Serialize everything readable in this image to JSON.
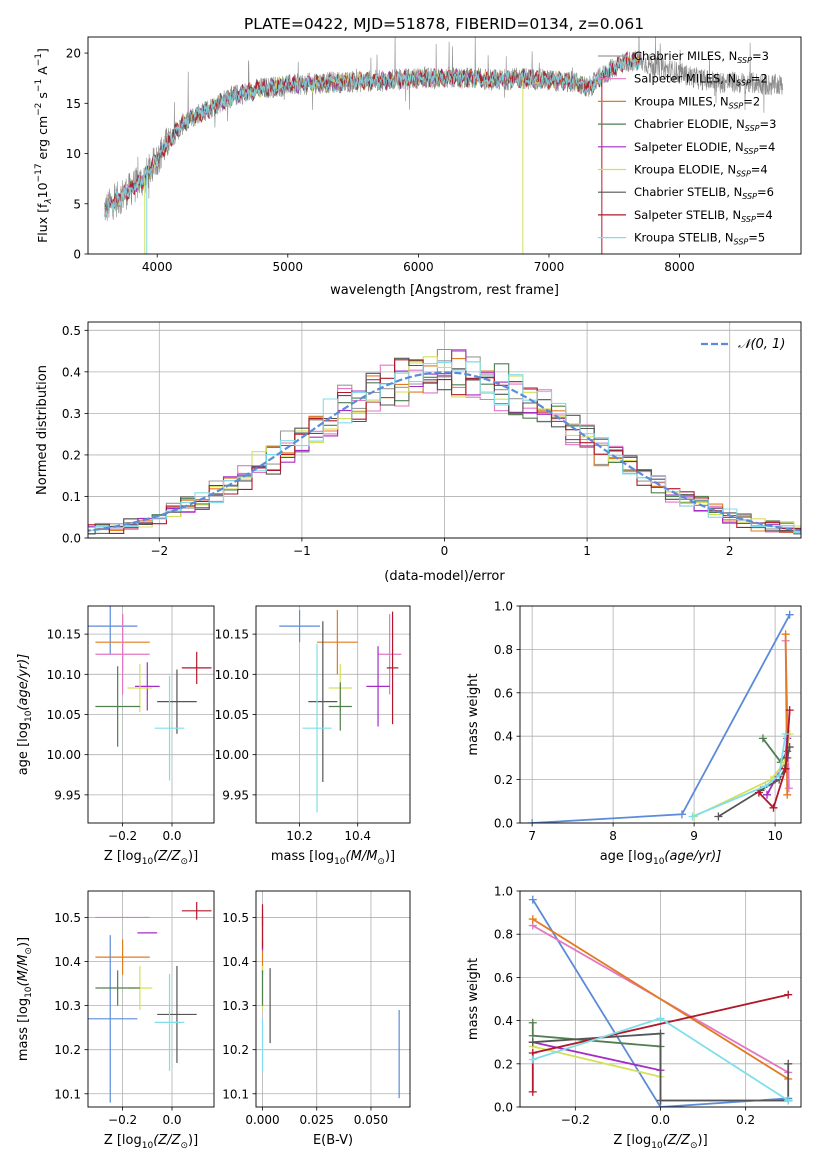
{
  "figure_title": "PLATE=0422, MJD=51878, FIBERID=0134, z=0.061",
  "legend_entries": [
    {
      "label": "Chabrier MILES, N",
      "sub": "SSP",
      "suffix": "=3",
      "color": "#9a9a9a"
    },
    {
      "label": "Salpeter MILES, N",
      "sub": "SSP",
      "suffix": "=2",
      "color": "#e377c2"
    },
    {
      "label": "Kroupa MILES, N",
      "sub": "SSP",
      "suffix": "=2",
      "color": "#e07b20"
    },
    {
      "label": "Chabrier ELODIE, N",
      "sub": "SSP",
      "suffix": "=3",
      "color": "#4f7f4f"
    },
    {
      "label": "Salpeter ELODIE, N",
      "sub": "SSP",
      "suffix": "=4",
      "color": "#a52cc4"
    },
    {
      "label": "Kroupa ELODIE, N",
      "sub": "SSP",
      "suffix": "=4",
      "color": "#d4e157"
    },
    {
      "label": "Chabrier STELIB, N",
      "sub": "SSP",
      "suffix": "=6",
      "color": "#555555"
    },
    {
      "label": "Salpeter STELIB, N",
      "sub": "SSP",
      "suffix": "=4",
      "color": "#b2182b"
    },
    {
      "label": "Kroupa STELIB, N",
      "sub": "SSP",
      "suffix": "=5",
      "color": "#80deea"
    }
  ],
  "chart_data": [
    {
      "id": "spectrum",
      "type": "line",
      "xlabel": "wavelength [Angstrom, rest frame]",
      "ylabel": "Flux [f",
      "ylabel_sub": "λ",
      "ylabel_rest": "10",
      "ylabel_exp": "−17",
      "ylabel_units": " erg cm",
      "ylabel_units_exp": "−2",
      "ylabel_units2": " s",
      "ylabel_units2_exp": "−1",
      "ylabel_units3": " A",
      "ylabel_units3_exp": "−1",
      "ylabel_close": "]",
      "xlim": [
        3470,
        8930
      ],
      "ylim": [
        0,
        21.6
      ],
      "xticks": [
        4000,
        5000,
        6000,
        7000,
        8000
      ],
      "yticks": [
        0,
        5,
        10,
        15,
        20
      ],
      "continuum": {
        "x": [
          3600,
          3700,
          3800,
          3900,
          4000,
          4100,
          4200,
          4300,
          4400,
          4500,
          4600,
          4800,
          5000,
          5200,
          5400,
          5600,
          5800,
          6000,
          6200,
          6400,
          6600,
          6800,
          7000,
          7100,
          7200,
          7300,
          7400,
          7500,
          7600,
          7700,
          7800,
          7900,
          8000,
          8100,
          8200,
          8300,
          8400,
          8500,
          8600,
          8700,
          8780
        ],
        "y": [
          4.5,
          5.5,
          6.5,
          7.5,
          9.5,
          11.5,
          13.0,
          13.8,
          14.5,
          15.2,
          15.8,
          16.5,
          16.8,
          17.0,
          17.1,
          17.2,
          17.3,
          17.5,
          17.5,
          17.5,
          17.3,
          17.5,
          17.3,
          17.2,
          17.1,
          16.5,
          17.6,
          18.6,
          19.2,
          19.2,
          18.7,
          18.4,
          18.0,
          17.6,
          17.3,
          17.1,
          17.1,
          17.0,
          17.0,
          16.8,
          16.8
        ]
      },
      "models": [
        {
          "name": "Chabrier MILES",
          "color": "#9a9a9a"
        },
        {
          "name": "Salpeter MILES",
          "color": "#e377c2"
        },
        {
          "name": "Kroupa MILES",
          "color": "#e07b20"
        },
        {
          "name": "Chabrier ELODIE",
          "color": "#4f7f4f"
        },
        {
          "name": "Salpeter ELODIE",
          "color": "#a52cc4"
        },
        {
          "name": "Kroupa ELODIE",
          "color": "#d4e157"
        },
        {
          "name": "Chabrier STELIB",
          "color": "#555555"
        },
        {
          "name": "Salpeter STELIB",
          "color": "#b2182b"
        },
        {
          "name": "Kroupa STELIB",
          "color": "#80deea"
        }
      ],
      "dropouts": [
        {
          "x": 3905,
          "color": "#d4e157"
        },
        {
          "x": 3920,
          "color": "#80deea"
        },
        {
          "x": 6800,
          "color": "#d4e157"
        },
        {
          "x": 7405,
          "color": "#b2182b"
        }
      ]
    },
    {
      "id": "residuals",
      "type": "histogram",
      "xlabel": "(data-model)/error",
      "ylabel": "Normed distribution",
      "xlim": [
        -2.5,
        2.5
      ],
      "ylim": [
        0,
        0.52
      ],
      "xticks": [
        -2,
        -1,
        0,
        1,
        2
      ],
      "xticklabels": [
        "−2",
        "−1",
        "0",
        "1",
        "2"
      ],
      "yticks": [
        0.0,
        0.1,
        0.2,
        0.3,
        0.4,
        0.5
      ],
      "yticklabels": [
        "0.0",
        "0.1",
        "0.2",
        "0.3",
        "0.4",
        "0.5"
      ],
      "legend": "𝒩(0, 1)",
      "gaussian_color": "#5b8bd9",
      "bin_width": 0.1,
      "grid": true
    },
    {
      "id": "age_vs_Z",
      "type": "errorbar",
      "xlabel": "Z [log",
      "xlabel_sub": "10",
      "xlabel_rest": "(Z/Z",
      "xlabel_sun": "⊙",
      "xlabel_close": ")]",
      "ylabel": "age  [log",
      "ylabel_sub": "10",
      "ylabel_rest": "(age/yr)]",
      "xlim": [
        -0.34,
        0.17
      ],
      "ylim": [
        9.915,
        10.185
      ],
      "xticks": [
        -0.2,
        0.0
      ],
      "xticklabels": [
        "−0.2",
        "0.0"
      ],
      "yticks": [
        9.95,
        10.0,
        10.05,
        10.1,
        10.15
      ],
      "yticklabels": [
        "9.95",
        "10.00",
        "10.05",
        "10.10",
        "10.15"
      ],
      "points": [
        {
          "x": -0.25,
          "y": 10.16,
          "xerr": 0.11,
          "yerr": 0.035,
          "color": "#5b8bd9"
        },
        {
          "x": -0.2,
          "y": 10.14,
          "xerr": 0.11,
          "yerr": 0.035,
          "color": "#e07b20"
        },
        {
          "x": -0.2,
          "y": 10.125,
          "xerr": 0.11,
          "yerr": 0.05,
          "color": "#e377c2"
        },
        {
          "x": -0.1,
          "y": 10.085,
          "xerr": 0.05,
          "yerr": 0.03,
          "color": "#a52cc4"
        },
        {
          "x": -0.13,
          "y": 10.083,
          "xerr": 0.05,
          "yerr": 0.03,
          "color": "#d4e157"
        },
        {
          "x": -0.22,
          "y": 10.06,
          "xerr": 0.09,
          "yerr": 0.05,
          "color": "#4f7f4f"
        },
        {
          "x": 0.02,
          "y": 10.066,
          "xerr": 0.08,
          "yerr": 0.04,
          "color": "#555555"
        },
        {
          "x": 0.1,
          "y": 10.108,
          "xerr": 0.06,
          "yerr": 0.02,
          "color": "#b2182b"
        },
        {
          "x": -0.01,
          "y": 10.033,
          "xerr": 0.06,
          "yerr": 0.065,
          "color": "#80deea"
        }
      ]
    },
    {
      "id": "age_vs_mass",
      "type": "errorbar",
      "xlabel": "mass [log",
      "xlabel_sub": "10",
      "xlabel_rest": "(M/M",
      "xlabel_sun": "⊙",
      "xlabel_close": ")]",
      "xlim": [
        10.05,
        10.58
      ],
      "ylim": [
        9.915,
        10.185
      ],
      "xticks": [
        10.2,
        10.4
      ],
      "xticklabels": [
        "10.2",
        "10.4"
      ],
      "yticks": [
        9.95,
        10.0,
        10.05,
        10.1,
        10.15
      ],
      "yticklabels": [
        "9.95",
        "10.00",
        "10.05",
        "10.10",
        "10.15"
      ],
      "points": [
        {
          "x": 10.2,
          "y": 10.16,
          "xerr": 0.07,
          "yerr": 0.02,
          "color": "#5b8bd9"
        },
        {
          "x": 10.33,
          "y": 10.14,
          "xerr": 0.07,
          "yerr": 0.04,
          "color": "#e07b20"
        },
        {
          "x": 10.51,
          "y": 10.125,
          "xerr": 0.04,
          "yerr": 0.05,
          "color": "#e377c2"
        },
        {
          "x": 10.47,
          "y": 10.085,
          "xerr": 0.04,
          "yerr": 0.05,
          "color": "#a52cc4"
        },
        {
          "x": 10.34,
          "y": 10.083,
          "xerr": 0.04,
          "yerr": 0.03,
          "color": "#d4e157"
        },
        {
          "x": 10.34,
          "y": 10.06,
          "xerr": 0.04,
          "yerr": 0.03,
          "color": "#4f7f4f"
        },
        {
          "x": 10.28,
          "y": 10.066,
          "xerr": 0.05,
          "yerr": 0.1,
          "color": "#555555"
        },
        {
          "x": 10.52,
          "y": 10.108,
          "xerr": 0.02,
          "yerr": 0.07,
          "color": "#b2182b"
        },
        {
          "x": 10.26,
          "y": 10.033,
          "xerr": 0.05,
          "yerr": 0.105,
          "color": "#80deea"
        }
      ]
    },
    {
      "id": "massweight_vs_age",
      "type": "line",
      "xlabel": "age  [log",
      "xlabel_sub": "10",
      "xlabel_rest": "(age/yr)]",
      "ylabel": "mass weight",
      "xlim": [
        6.85,
        10.32
      ],
      "ylim": [
        0,
        1.0
      ],
      "xticks": [
        7,
        8,
        9,
        10
      ],
      "xticklabels": [
        "7",
        "8",
        "9",
        "10"
      ],
      "yticks": [
        0.0,
        0.2,
        0.4,
        0.6,
        0.8,
        1.0
      ],
      "yticklabels": [
        "0.0",
        "0.2",
        "0.4",
        "0.6",
        "0.8",
        "1.0"
      ],
      "series": [
        {
          "color": "#5b8bd9",
          "x": [
            7.0,
            8.85,
            10.18
          ],
          "y": [
            0.0,
            0.04,
            0.96
          ]
        },
        {
          "color": "#e377c2",
          "x": [
            10.13,
            10.17
          ],
          "y": [
            0.84,
            0.16
          ]
        },
        {
          "color": "#e07b20",
          "x": [
            10.13,
            10.15
          ],
          "y": [
            0.87,
            0.13
          ]
        },
        {
          "color": "#4f7f4f",
          "x": [
            9.85,
            10.07,
            10.15
          ],
          "y": [
            0.39,
            0.28,
            0.33
          ]
        },
        {
          "color": "#a52cc4",
          "x": [
            9.9,
            10.0,
            10.12,
            10.15
          ],
          "y": [
            0.13,
            0.2,
            0.28,
            0.39
          ]
        },
        {
          "color": "#d4e157",
          "x": [
            9.0,
            9.95,
            10.12,
            10.18
          ],
          "y": [
            0.03,
            0.2,
            0.28,
            0.41
          ]
        },
        {
          "color": "#555555",
          "x": [
            9.3,
            9.82,
            10.05,
            10.12,
            10.15,
            10.18
          ],
          "y": [
            0.03,
            0.15,
            0.2,
            0.25,
            0.3,
            0.35
          ]
        },
        {
          "color": "#b2182b",
          "x": [
            9.8,
            9.98,
            10.13,
            10.18
          ],
          "y": [
            0.14,
            0.07,
            0.25,
            0.52
          ]
        },
        {
          "color": "#80deea",
          "x": [
            8.98,
            9.88,
            10.05,
            10.13
          ],
          "y": [
            0.03,
            0.17,
            0.22,
            0.41
          ]
        }
      ]
    },
    {
      "id": "mass_vs_Z",
      "type": "errorbar",
      "xlabel": "Z [log",
      "xlabel_sub": "10",
      "xlabel_rest": "(Z/Z",
      "xlabel_sun": "⊙",
      "xlabel_close": ")]",
      "ylabel": "mass [log",
      "ylabel_sub": "10",
      "ylabel_rest": "(M/M",
      "ylabel_sun": "⊙",
      "ylabel_close": ")]",
      "xlim": [
        -0.34,
        0.17
      ],
      "ylim": [
        10.07,
        10.56
      ],
      "xticks": [
        -0.2,
        0.0
      ],
      "xticklabels": [
        "−0.2",
        "0.0"
      ],
      "yticks": [
        10.1,
        10.2,
        10.3,
        10.4,
        10.5
      ],
      "yticklabels": [
        "10.1",
        "10.2",
        "10.3",
        "10.4",
        "10.5"
      ],
      "points": [
        {
          "x": -0.25,
          "y": 10.27,
          "xerr": 0.11,
          "yerr": 0.19,
          "color": "#5b8bd9"
        },
        {
          "x": -0.2,
          "y": 10.5,
          "xerr": 0.11,
          "yerr": 0.0,
          "color": "#e377c2"
        },
        {
          "x": -0.2,
          "y": 10.41,
          "xerr": 0.11,
          "yerr": 0.04,
          "color": "#e07b20"
        },
        {
          "x": -0.1,
          "y": 10.465,
          "xerr": 0.04,
          "yerr": 0.0,
          "color": "#a52cc4"
        },
        {
          "x": -0.13,
          "y": 10.34,
          "xerr": 0.05,
          "yerr": 0.05,
          "color": "#d4e157"
        },
        {
          "x": -0.22,
          "y": 10.34,
          "xerr": 0.09,
          "yerr": 0.04,
          "color": "#4f7f4f"
        },
        {
          "x": 0.02,
          "y": 10.28,
          "xerr": 0.08,
          "yerr": 0.11,
          "color": "#555555"
        },
        {
          "x": 0.1,
          "y": 10.515,
          "xerr": 0.06,
          "yerr": 0.02,
          "color": "#b2182b"
        },
        {
          "x": -0.01,
          "y": 10.262,
          "xerr": 0.06,
          "yerr": 0.11,
          "color": "#80deea"
        }
      ]
    },
    {
      "id": "mass_vs_EBV",
      "type": "errorbar",
      "xlabel": "E(B-V)",
      "xlim": [
        -0.003,
        0.068
      ],
      "ylim": [
        10.07,
        10.56
      ],
      "xticks": [
        0.0,
        0.025,
        0.05
      ],
      "xticklabels": [
        "0.000",
        "0.025",
        "0.050"
      ],
      "yticks": [
        10.1,
        10.2,
        10.3,
        10.4,
        10.5
      ],
      "yticklabels": [
        "10.1",
        "10.2",
        "10.3",
        "10.4",
        "10.5"
      ],
      "points": [
        {
          "x": 0.063,
          "y": 10.19,
          "xerr": 0.0,
          "yerr": 0.1,
          "color": "#5b8bd9"
        },
        {
          "x": 0.0,
          "y": 10.5,
          "xerr": 0.0,
          "yerr": 0.02,
          "color": "#e377c2"
        },
        {
          "x": 0.0,
          "y": 10.41,
          "xerr": 0.0,
          "yerr": 0.04,
          "color": "#e07b20"
        },
        {
          "x": 0.0,
          "y": 10.465,
          "xerr": 0.0,
          "yerr": 0.04,
          "color": "#a52cc4"
        },
        {
          "x": 0.0,
          "y": 10.34,
          "xerr": 0.0,
          "yerr": 0.05,
          "color": "#d4e157"
        },
        {
          "x": 0.0,
          "y": 10.34,
          "xerr": 0.0,
          "yerr": 0.04,
          "color": "#4f7f4f"
        },
        {
          "x": 0.0035,
          "y": 10.3,
          "xerr": 0.0,
          "yerr": 0.085,
          "color": "#555555"
        },
        {
          "x": 0.0,
          "y": 10.48,
          "xerr": 0.0,
          "yerr": 0.05,
          "color": "#b2182b"
        },
        {
          "x": 0.0,
          "y": 10.21,
          "xerr": 0.0,
          "yerr": 0.06,
          "color": "#80deea"
        }
      ]
    },
    {
      "id": "massweight_vs_Z",
      "type": "line",
      "xlabel": "Z [log",
      "xlabel_sub": "10",
      "xlabel_rest": "(Z/Z",
      "xlabel_sun": "⊙",
      "xlabel_close": ")]",
      "ylabel": "mass weight",
      "xlim": [
        -0.33,
        0.33
      ],
      "ylim": [
        0,
        1.0
      ],
      "xticks": [
        -0.2,
        0.0,
        0.2
      ],
      "xticklabels": [
        "−0.2",
        "0.0",
        "0.2"
      ],
      "yticks": [
        0.0,
        0.2,
        0.4,
        0.6,
        0.8,
        1.0
      ],
      "yticklabels": [
        "0.0",
        "0.2",
        "0.4",
        "0.6",
        "0.8",
        "1.0"
      ],
      "series": [
        {
          "color": "#5b8bd9",
          "x": [
            -0.3,
            0.0,
            0.3
          ],
          "y": [
            0.96,
            0.0,
            0.04
          ]
        },
        {
          "color": "#e377c2",
          "x": [
            -0.3,
            0.3
          ],
          "y": [
            0.84,
            0.16
          ]
        },
        {
          "color": "#e07b20",
          "x": [
            -0.3,
            0.3
          ],
          "y": [
            0.87,
            0.13
          ]
        },
        {
          "color": "#4f7f4f",
          "x": [
            -0.3,
            -0.3,
            0.0,
            0.0,
            0.3
          ],
          "y": [
            0.39,
            0.33,
            0.28,
            0.03,
            0.03
          ]
        },
        {
          "color": "#a52cc4",
          "x": [
            -0.3,
            0.0,
            0.0,
            0.3
          ],
          "y": [
            0.3,
            0.17,
            0.03,
            0.03
          ]
        },
        {
          "color": "#d4e157",
          "x": [
            -0.3,
            0.0,
            0.0,
            0.3
          ],
          "y": [
            0.28,
            0.14,
            0.03,
            0.03
          ]
        },
        {
          "color": "#555555",
          "x": [
            -0.3,
            0.0,
            0.0,
            0.3,
            0.3
          ],
          "y": [
            0.3,
            0.34,
            0.03,
            0.03,
            0.2
          ]
        },
        {
          "color": "#b2182b",
          "x": [
            -0.3,
            -0.3,
            0.3
          ],
          "y": [
            0.07,
            0.25,
            0.52
          ]
        },
        {
          "color": "#80deea",
          "x": [
            -0.3,
            0.0,
            0.3
          ],
          "y": [
            0.22,
            0.41,
            0.03
          ]
        }
      ]
    }
  ]
}
